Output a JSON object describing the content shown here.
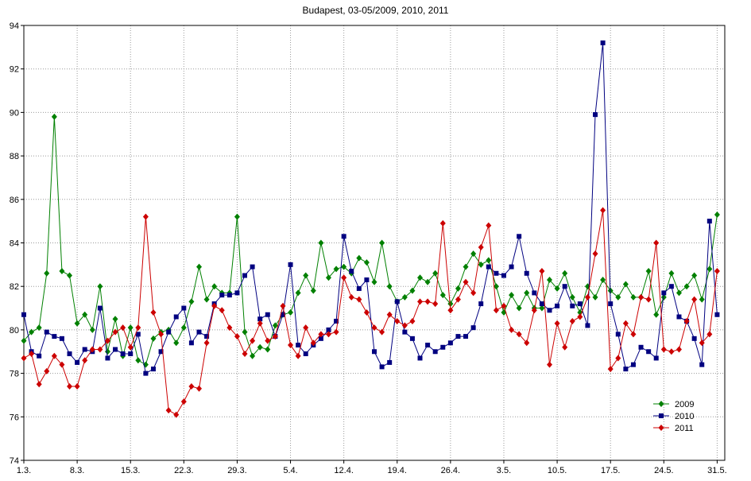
{
  "chart_data": {
    "type": "line",
    "title": "Budapest, 03-05/2009, 2010, 2011",
    "xlabel": "",
    "ylabel": "",
    "ylim": [
      74,
      94
    ],
    "yticks": [
      74,
      76,
      78,
      80,
      82,
      84,
      86,
      88,
      90,
      92,
      94
    ],
    "xlim": [
      1,
      93
    ],
    "xticks": [
      {
        "day": 1,
        "label": "1.3."
      },
      {
        "day": 8,
        "label": "8.3."
      },
      {
        "day": 15,
        "label": "15.3."
      },
      {
        "day": 22,
        "label": "22.3."
      },
      {
        "day": 29,
        "label": "29.3."
      },
      {
        "day": 36,
        "label": "5.4."
      },
      {
        "day": 43,
        "label": "12.4."
      },
      {
        "day": 50,
        "label": "19.4."
      },
      {
        "day": 57,
        "label": "26.4."
      },
      {
        "day": 64,
        "label": "3.5."
      },
      {
        "day": 71,
        "label": "10.5."
      },
      {
        "day": 78,
        "label": "17.5."
      },
      {
        "day": 85,
        "label": "24.5."
      },
      {
        "day": 92,
        "label": "31.5."
      }
    ],
    "grid": true,
    "legend_position": "bottom-right",
    "series": [
      {
        "name": "2009",
        "color": "#008000",
        "marker": "diamond",
        "values": [
          79.5,
          79.9,
          80.1,
          82.6,
          89.8,
          82.7,
          82.5,
          80.3,
          80.7,
          80.0,
          82.0,
          79.0,
          80.5,
          78.8,
          80.1,
          78.6,
          78.4,
          79.6,
          79.9,
          80.0,
          79.4,
          80.1,
          81.3,
          82.9,
          81.4,
          82.0,
          81.7,
          81.7,
          85.2,
          79.9,
          78.8,
          79.2,
          79.1,
          80.2,
          80.7,
          80.8,
          81.7,
          82.5,
          81.8,
          84.0,
          82.4,
          82.8,
          82.9,
          82.6,
          83.3,
          83.1,
          82.2,
          84.0,
          82.0,
          81.3,
          81.5,
          81.8,
          82.4,
          82.2,
          82.6,
          81.6,
          81.2,
          81.9,
          82.9,
          83.5,
          83.0,
          83.2,
          82.0,
          80.8,
          81.6,
          81.0,
          81.7,
          81.0,
          81.0,
          82.3,
          81.9,
          82.6,
          81.5,
          80.8,
          82.0,
          81.5,
          82.3,
          81.8,
          81.5,
          82.1,
          81.5,
          81.5,
          82.7,
          80.7,
          81.5,
          82.6,
          81.7,
          82.0,
          82.5,
          81.4,
          82.8,
          85.3
        ]
      },
      {
        "name": "2010",
        "color": "#000080",
        "marker": "square",
        "values": [
          80.7,
          79.0,
          78.8,
          79.9,
          79.7,
          79.6,
          78.9,
          78.5,
          79.1,
          79.0,
          81.0,
          78.7,
          79.1,
          78.9,
          78.9,
          79.8,
          78.0,
          78.2,
          79.0,
          79.9,
          80.6,
          81.0,
          79.4,
          79.9,
          79.7,
          81.2,
          81.6,
          81.6,
          81.7,
          82.5,
          82.9,
          80.5,
          80.7,
          79.7,
          80.7,
          83.0,
          79.3,
          78.9,
          79.3,
          79.6,
          80.0,
          80.4,
          84.3,
          82.7,
          81.9,
          82.3,
          79.0,
          78.3,
          78.5,
          81.3,
          79.9,
          79.6,
          78.7,
          79.3,
          79.0,
          79.2,
          79.4,
          79.7,
          79.7,
          80.1,
          81.2,
          82.9,
          82.6,
          82.5,
          82.9,
          84.3,
          82.6,
          81.7,
          81.2,
          80.9,
          81.1,
          82.0,
          81.1,
          81.2,
          80.2,
          89.9,
          93.2,
          81.2,
          79.8,
          78.2,
          78.4,
          79.2,
          79.0,
          78.7,
          81.7,
          82.0,
          80.6,
          80.4,
          79.6,
          78.4,
          85.0,
          80.7
        ]
      },
      {
        "name": "2011",
        "color": "#cc0000",
        "marker": "diamond",
        "values": [
          78.7,
          78.9,
          77.5,
          78.1,
          78.8,
          78.4,
          77.4,
          77.4,
          78.6,
          79.1,
          79.1,
          79.5,
          79.9,
          80.1,
          79.2,
          80.1,
          85.2,
          80.8,
          79.8,
          76.3,
          76.1,
          76.7,
          77.4,
          77.3,
          79.4,
          81.1,
          80.9,
          80.1,
          79.7,
          78.9,
          79.5,
          80.3,
          79.5,
          79.7,
          81.1,
          79.3,
          78.8,
          80.1,
          79.4,
          79.8,
          79.8,
          79.9,
          82.4,
          81.5,
          81.4,
          80.8,
          80.1,
          79.9,
          80.7,
          80.4,
          80.2,
          80.4,
          81.3,
          81.3,
          81.2,
          84.9,
          80.9,
          81.4,
          82.2,
          81.7,
          83.8,
          84.8,
          80.9,
          81.1,
          80.0,
          79.8,
          79.4,
          80.9,
          82.7,
          78.4,
          80.3,
          79.2,
          80.4,
          80.6,
          81.5,
          83.5,
          85.5,
          78.2,
          78.7,
          80.3,
          79.8,
          81.5,
          81.4,
          84.0,
          79.1,
          79.0,
          79.1,
          80.4,
          81.4,
          79.4,
          79.8,
          82.7
        ]
      }
    ]
  }
}
